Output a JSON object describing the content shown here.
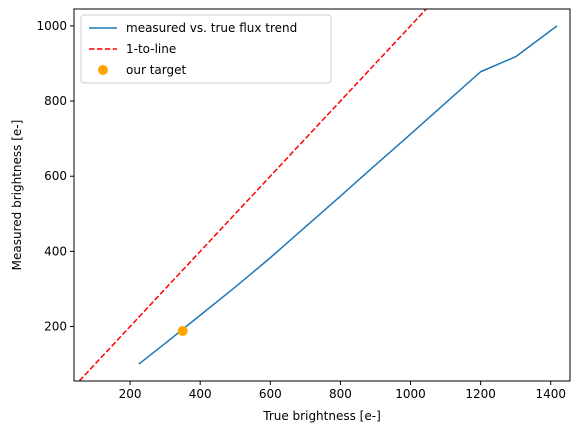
{
  "chart_data": {
    "type": "line",
    "title": "",
    "xlabel": "True brightness [e-]",
    "ylabel": "Measured brightness [e-]",
    "xlim": [
      40,
      1455
    ],
    "ylim": [
      55,
      1045
    ],
    "xticks": [
      200,
      400,
      600,
      800,
      1000,
      1200,
      1400
    ],
    "yticks": [
      200,
      400,
      600,
      800,
      1000
    ],
    "grid": false,
    "legend_position": "upper left",
    "series": [
      {
        "name": "measured vs. true flux trend",
        "kind": "line",
        "color": "#1f77b4",
        "style": "solid",
        "x": [
          225,
          300,
          400,
          500,
          600,
          700,
          800,
          900,
          1000,
          1100,
          1200,
          1300,
          1418
        ],
        "y": [
          100,
          155,
          230,
          305,
          383,
          465,
          547,
          630,
          712,
          795,
          878,
          918,
          1000
        ]
      },
      {
        "name": "1-to-line",
        "kind": "line",
        "color": "#ff0000",
        "style": "dashed",
        "x": [
          40,
          1455
        ],
        "y": [
          40,
          1455
        ]
      },
      {
        "name": "our target",
        "kind": "scatter",
        "color": "#ffa500",
        "x": [
          350
        ],
        "y": [
          188
        ]
      }
    ]
  }
}
